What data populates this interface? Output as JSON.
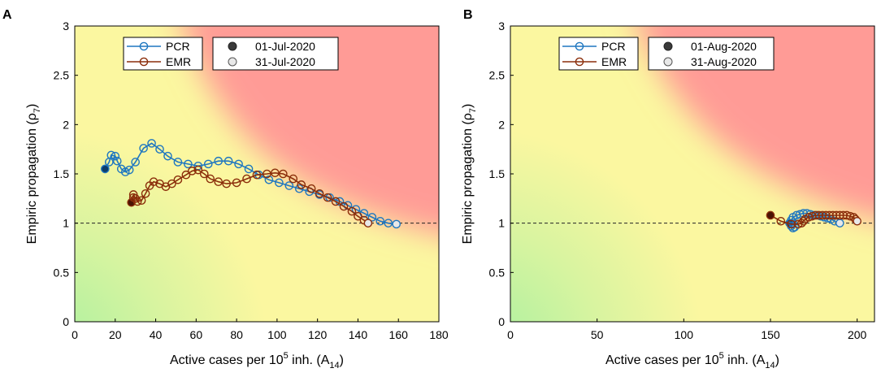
{
  "colors": {
    "pcr": "#1f77c0",
    "emr": "#8b2e0b",
    "pcr_start": "#0b3d6b",
    "emr_start": "#4a1405",
    "end_fill": "#e8e8e8",
    "green": "#a6f0a0",
    "yellow": "#fbf7a0",
    "red": "#ff9b96"
  },
  "chart_data": [
    {
      "type": "line",
      "panel_label": "A",
      "xlabel_main": "Active cases per 10",
      "xlabel_sup": "5",
      "xlabel_after": " inh. (A",
      "xlabel_sub": "14",
      "xlabel_end": ")",
      "ylabel": "Empiric propagation  (ρ",
      "ylabel_sub": "7",
      "ylabel_end": ")",
      "xlim": [
        0,
        180
      ],
      "ylim": [
        0,
        3
      ],
      "xticks": [
        0,
        20,
        40,
        60,
        80,
        100,
        120,
        140,
        160,
        180
      ],
      "yticks": [
        0,
        0.5,
        1,
        1.5,
        2,
        2.5,
        3
      ],
      "reference_line_y": 1,
      "legend_series": [
        "PCR",
        "EMR"
      ],
      "legend_dates": [
        "01-Jul-2020",
        "31-Jul-2020"
      ],
      "series": [
        {
          "name": "PCR",
          "x": [
            15,
            17,
            18,
            20,
            21,
            23,
            25,
            27,
            30,
            34,
            38,
            42,
            46,
            51,
            56,
            61,
            66,
            71,
            76,
            81,
            86,
            91,
            96,
            101,
            106,
            111,
            116,
            121,
            126,
            131,
            135,
            139,
            143,
            147,
            151,
            155,
            159
          ],
          "y": [
            1.55,
            1.62,
            1.69,
            1.68,
            1.63,
            1.55,
            1.52,
            1.54,
            1.62,
            1.76,
            1.81,
            1.75,
            1.68,
            1.62,
            1.6,
            1.58,
            1.6,
            1.63,
            1.63,
            1.6,
            1.55,
            1.49,
            1.44,
            1.41,
            1.38,
            1.35,
            1.32,
            1.29,
            1.26,
            1.22,
            1.18,
            1.14,
            1.1,
            1.06,
            1.02,
            1.0,
            0.99
          ]
        },
        {
          "name": "EMR",
          "x": [
            28,
            29,
            29,
            30,
            31,
            33,
            35,
            37,
            39,
            42,
            45,
            48,
            51,
            55,
            58,
            61,
            64,
            67,
            71,
            75,
            80,
            85,
            90,
            95,
            99,
            103,
            108,
            112,
            117,
            121,
            125,
            129,
            133,
            137,
            140,
            143,
            145
          ],
          "y": [
            1.21,
            1.26,
            1.29,
            1.25,
            1.22,
            1.23,
            1.3,
            1.38,
            1.42,
            1.4,
            1.37,
            1.4,
            1.44,
            1.49,
            1.53,
            1.54,
            1.5,
            1.45,
            1.42,
            1.4,
            1.41,
            1.45,
            1.49,
            1.5,
            1.51,
            1.5,
            1.45,
            1.39,
            1.35,
            1.3,
            1.26,
            1.22,
            1.17,
            1.12,
            1.07,
            1.03,
            1.0
          ]
        }
      ]
    },
    {
      "type": "line",
      "panel_label": "B",
      "xlabel_main": "Active cases per 10",
      "xlabel_sup": "5",
      "xlabel_after": " inh. (A",
      "xlabel_sub": "14",
      "xlabel_end": ")",
      "ylabel": "Empiric propagation (ρ",
      "ylabel_sub": "7",
      "ylabel_end": ")",
      "xlim": [
        0,
        210
      ],
      "ylim": [
        0,
        3
      ],
      "xticks": [
        0,
        50,
        100,
        150,
        200
      ],
      "yticks": [
        0,
        0.5,
        1,
        1.5,
        2,
        2.5,
        3
      ],
      "reference_line_y": 1,
      "legend_series": [
        "PCR",
        "EMR"
      ],
      "legend_dates": [
        "01-Aug-2020",
        "31-Aug-2020"
      ],
      "series": [
        {
          "name": "PCR",
          "x": [
            161,
            162,
            163,
            164,
            163,
            162,
            163,
            165,
            167,
            169,
            171,
            173,
            175,
            177,
            179,
            181,
            183,
            185,
            187,
            190
          ],
          "y": [
            1.0,
            0.97,
            0.95,
            0.96,
            1.0,
            1.03,
            1.06,
            1.08,
            1.09,
            1.1,
            1.1,
            1.09,
            1.08,
            1.08,
            1.07,
            1.06,
            1.05,
            1.04,
            1.02,
            1.0
          ]
        },
        {
          "name": "EMR",
          "x": [
            150,
            156,
            162,
            166,
            168,
            169,
            170,
            172,
            174,
            176,
            178,
            180,
            182,
            184,
            186,
            188,
            190,
            192,
            194,
            196,
            198,
            199,
            200
          ],
          "y": [
            1.08,
            1.02,
            0.99,
            0.99,
            1.0,
            1.02,
            1.04,
            1.06,
            1.07,
            1.08,
            1.08,
            1.08,
            1.08,
            1.08,
            1.08,
            1.08,
            1.08,
            1.08,
            1.08,
            1.07,
            1.06,
            1.04,
            1.02
          ]
        }
      ]
    }
  ]
}
